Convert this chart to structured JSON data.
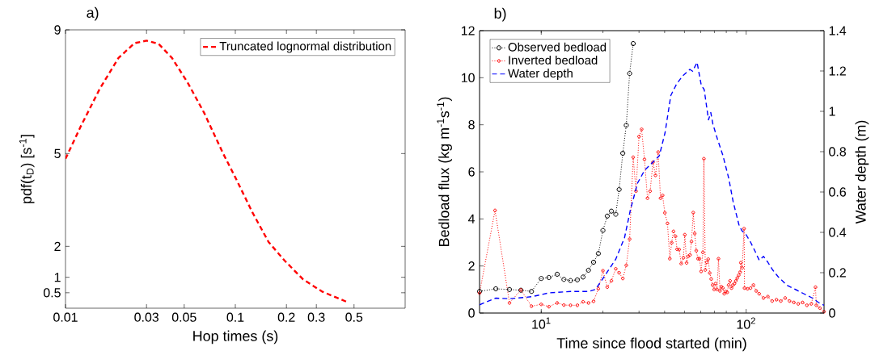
{
  "chart_data": [
    {
      "type": "line",
      "title": "a)",
      "xlabel": "Hop times (s)",
      "ylabel": "pdf(t$_{D}$) [s$^{-1}$]",
      "log": "x",
      "legend": "top right",
      "xlim": [
        0.01,
        1
      ],
      "ylim": [
        0,
        9
      ],
      "xticks": [
        0.01,
        0.03,
        0.05,
        0.1,
        0.2,
        0.3,
        0.5
      ],
      "yticks": [
        0.5,
        1,
        2,
        5,
        9
      ],
      "series": [
        {
          "name": "Truncated lognormal distribution",
          "color": "#ff0000",
          "line_style": "dashed",
          "marker": "none",
          "x": [
            0.01,
            0.0123,
            0.0159,
            0.0205,
            0.0255,
            0.03,
            0.0353,
            0.0424,
            0.0527,
            0.0656,
            0.0846,
            0.1,
            0.126,
            0.157,
            0.195,
            0.251,
            0.324,
            0.46
          ],
          "values": [
            4.83,
            5.88,
            7.09,
            8.09,
            8.57,
            8.65,
            8.55,
            8.09,
            7.27,
            6.31,
            5.01,
            4.23,
            3.1,
            2.14,
            1.54,
            0.93,
            0.54,
            0.19
          ]
        }
      ]
    },
    {
      "type": "line",
      "title": "b)",
      "xlabel": "Time since flood started (min)",
      "ylabel": "Bedload flux (kg m$^{-1}$s$^{-1}$)",
      "y2label": "Water depth (m)",
      "log": "x",
      "legend": "top left",
      "xlim": [
        5,
        240
      ],
      "ylim": [
        0,
        12
      ],
      "y2lim": [
        0,
        1.4
      ],
      "xticks": [
        {
          "value": 10,
          "label": "10$^{1}$"
        },
        {
          "value": 100,
          "label": "10$^{2}$"
        }
      ],
      "yticks": [
        0,
        2,
        4,
        6,
        8,
        10,
        12
      ],
      "y2ticks": [
        0,
        0.2,
        0.4,
        0.6,
        0.8,
        1,
        1.2,
        1.4
      ],
      "series": [
        {
          "name": "Observed bedload",
          "color": "#000000",
          "line_style": "dotted",
          "marker": "circle",
          "axis": "y",
          "x": [
            5,
            6,
            7,
            7.96,
            8.96,
            10,
            10.9,
            11.96,
            12.9,
            13.9,
            15,
            16,
            17,
            18,
            19,
            20,
            21,
            22,
            23.1,
            24,
            25,
            26,
            27,
            28.1
          ],
          "values": [
            0.92,
            1.03,
            1.0,
            0.97,
            0.92,
            1.47,
            1.51,
            1.65,
            1.43,
            1.38,
            1.41,
            1.53,
            1.82,
            2.16,
            2.53,
            3.51,
            4.12,
            4.33,
            4.2,
            5.25,
            6.79,
            7.98,
            10.18,
            11.45
          ]
        },
        {
          "name": "Inverted bedload",
          "color": "#ff0000",
          "line_style": "dotted",
          "marker": "circle",
          "axis": "y",
          "x": [
            5,
            5.95,
            7,
            7.96,
            8.96,
            10,
            10.9,
            11.96,
            12.9,
            13.9,
            15,
            16,
            17,
            18,
            19,
            20,
            21,
            22,
            23.1,
            24,
            25,
            26,
            27,
            28.1,
            29,
            30,
            30.9,
            31.9,
            33,
            34,
            35.1,
            36.1,
            37.2,
            38.2,
            39.1,
            40.1,
            41.3,
            42.4,
            43.3,
            44.2,
            45.2,
            46,
            47.1,
            48.2,
            49.4,
            50.2,
            51.2,
            52.2,
            53.2,
            54.1,
            55.2,
            56.1,
            57.1,
            58.2,
            59.2,
            60.3,
            61.5,
            62.2,
            63.2,
            64.2,
            65.3,
            66.4,
            67.5,
            68.6,
            69.8,
            70.9,
            72.1,
            73.3,
            74.5,
            75.7,
            77,
            78.2,
            79.5,
            80.8,
            82.1,
            83.5,
            84.8,
            86.2,
            87.7,
            89.1,
            90.5,
            92,
            93.5,
            94.2,
            95.6,
            97.7,
            98.2,
            101.6,
            105,
            108.5,
            112,
            115.8,
            121.5,
            127.6,
            134,
            140.6,
            147.6,
            155,
            162.8,
            171,
            179.6,
            188.5,
            198,
            208,
            218,
            220,
            229,
            240
          ],
          "values": [
            0.85,
            4.36,
            0.43,
            0.98,
            0.29,
            0.37,
            0.27,
            0.43,
            0.34,
            0.33,
            0.33,
            0.48,
            0.43,
            0.5,
            1.03,
            1.8,
            1.1,
            1.37,
            1.88,
            1.71,
            1.47,
            2.03,
            3.14,
            6.62,
            5.18,
            7.5,
            7.81,
            6.53,
            4.88,
            5.18,
            6.41,
            5.85,
            6.84,
            4.88,
            5.0,
            4.26,
            3.81,
            2.31,
            2.99,
            3.47,
            3.26,
            2.71,
            2.7,
            2.1,
            2.35,
            3.33,
            2.13,
            2.41,
            2.47,
            3.04,
            4.27,
            3.38,
            2.65,
            2.31,
            2.31,
            1.77,
            2.58,
            6.56,
            1.83,
            2.16,
            2.29,
            1.7,
            1.45,
            1.19,
            1.0,
            1.25,
            1.0,
            2.31,
            0.94,
            1.12,
            1.06,
            0.82,
            0.92,
            0.88,
            1.19,
            1.37,
            1.06,
            1.19,
            1.25,
            1.37,
            1.49,
            1.61,
            1.74,
            2.14,
            1.92,
            3.59,
            1.06,
            1.03,
            1.06,
            1.19,
            0.94,
            0.82,
            0.64,
            0.7,
            0.51,
            0.57,
            0.51,
            0.64,
            0.51,
            0.45,
            0.39,
            0.45,
            0.33,
            0.39,
            1.1,
            0.33,
            0.21,
            0.06
          ]
        },
        {
          "name": "Water depth",
          "color": "#0000ff",
          "line_style": "dashed",
          "marker": "none",
          "axis": "y2",
          "x": [
            5,
            6,
            7,
            9,
            10.9,
            13.9,
            17,
            18.4,
            20.3,
            23.1,
            25.5,
            27.2,
            29.5,
            32,
            35.3,
            37.7,
            40.2,
            42.9,
            45.8,
            48.9,
            53.1,
            54.8,
            57.6,
            60.4,
            62.4,
            65.5,
            67.2,
            68.8,
            72.3,
            77.1,
            82.3,
            86.4,
            92.2,
            95.2,
            100,
            105,
            110.2,
            115.8,
            121.5,
            127.6,
            134,
            143,
            158,
            174,
            191,
            211,
            225,
            240
          ],
          "values": [
            0.041,
            0.074,
            0.071,
            0.081,
            0.1,
            0.107,
            0.107,
            0.117,
            0.181,
            0.267,
            0.374,
            0.509,
            0.644,
            0.709,
            0.751,
            0.78,
            0.894,
            1.079,
            1.136,
            1.175,
            1.208,
            1.199,
            1.243,
            1.129,
            1.108,
            0.958,
            0.994,
            0.937,
            0.865,
            0.78,
            0.666,
            0.552,
            0.438,
            0.409,
            0.388,
            0.352,
            0.309,
            0.262,
            0.281,
            0.252,
            0.217,
            0.181,
            0.138,
            0.117,
            0.096,
            0.074,
            0.053,
            0.038
          ]
        }
      ]
    }
  ]
}
